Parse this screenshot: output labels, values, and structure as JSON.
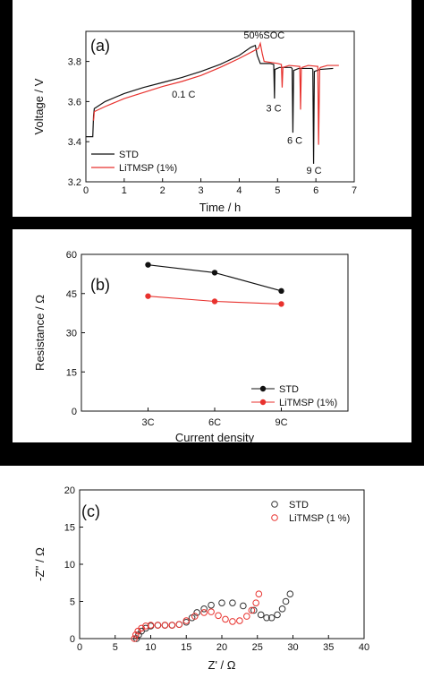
{
  "chart_data": [
    {
      "type": "line",
      "panel_label": "(a)",
      "xlabel": "Time / h",
      "ylabel": "Voltage / V",
      "xlim": [
        0,
        7
      ],
      "ylim": [
        3.2,
        3.95
      ],
      "xticks": [
        0,
        1,
        2,
        3,
        4,
        5,
        6,
        7
      ],
      "yticks": [
        3.2,
        3.4,
        3.6,
        3.8
      ],
      "legend_position": "bottom-left",
      "annotations": [
        {
          "text": "50%SOC",
          "x": 4.65,
          "y": 3.915
        },
        {
          "text": "0.1 C",
          "x": 2.55,
          "y": 3.62
        },
        {
          "text": "3 C",
          "x": 4.9,
          "y": 3.55
        },
        {
          "text": "6 C",
          "x": 5.45,
          "y": 3.39
        },
        {
          "text": "9 C",
          "x": 5.95,
          "y": 3.24
        }
      ],
      "series": [
        {
          "name": "STD",
          "color": "#111111",
          "x": [
            0,
            0.18,
            0.2,
            0.22,
            0.5,
            1.0,
            1.5,
            2.0,
            2.5,
            3.0,
            3.5,
            4.0,
            4.3,
            4.42,
            4.47,
            4.55,
            4.8,
            4.9,
            4.92,
            4.93,
            5.05,
            5.35,
            5.38,
            5.4,
            5.42,
            5.55,
            5.9,
            5.92,
            5.94,
            5.96,
            6.1,
            6.45
          ],
          "y": [
            3.425,
            3.425,
            3.53,
            3.565,
            3.6,
            3.64,
            3.67,
            3.695,
            3.72,
            3.75,
            3.785,
            3.83,
            3.87,
            3.88,
            3.83,
            3.79,
            3.79,
            3.785,
            3.615,
            3.76,
            3.77,
            3.77,
            3.765,
            3.445,
            3.755,
            3.765,
            3.765,
            3.76,
            3.29,
            3.75,
            3.76,
            3.765
          ]
        },
        {
          "name": "LiTMSP (1%)",
          "color": "#e8322e",
          "x": [
            0.2,
            0.22,
            0.5,
            1.0,
            1.5,
            2.0,
            2.5,
            3.0,
            3.5,
            4.0,
            4.5,
            4.55,
            4.6,
            4.65,
            5.0,
            5.1,
            5.12,
            5.14,
            5.3,
            5.58,
            5.6,
            5.62,
            5.64,
            5.8,
            6.05,
            6.07,
            6.1,
            6.12,
            6.3,
            6.6
          ],
          "y": [
            3.505,
            3.55,
            3.575,
            3.615,
            3.645,
            3.675,
            3.7,
            3.73,
            3.77,
            3.815,
            3.865,
            3.89,
            3.84,
            3.8,
            3.79,
            3.785,
            3.67,
            3.77,
            3.78,
            3.775,
            3.56,
            3.765,
            3.77,
            3.78,
            3.775,
            3.385,
            3.765,
            3.77,
            3.78,
            3.78
          ]
        }
      ]
    },
    {
      "type": "line",
      "panel_label": "(b)",
      "xlabel": "Current density",
      "ylabel": "Resistance / Ω",
      "categories": [
        "3C",
        "6C",
        "9C"
      ],
      "ylim": [
        0,
        60
      ],
      "yticks": [
        0,
        15,
        30,
        45,
        60
      ],
      "legend_position": "bottom-right",
      "series": [
        {
          "name": "STD",
          "color": "#111111",
          "values": [
            56,
            53,
            46
          ]
        },
        {
          "name": "LiTMSP (1%)",
          "color": "#e8322e",
          "values": [
            44,
            42,
            41
          ]
        }
      ]
    },
    {
      "type": "scatter",
      "panel_label": "(c)",
      "xlabel": "Z' / Ω",
      "ylabel": "-Z'' / Ω",
      "xlim": [
        0,
        40
      ],
      "ylim": [
        0,
        20
      ],
      "xticks": [
        0,
        5,
        10,
        15,
        20,
        25,
        30,
        35,
        40
      ],
      "yticks": [
        0,
        5,
        10,
        15,
        20
      ],
      "legend_position": "top-right",
      "series": [
        {
          "name": "STD",
          "color": "#333333",
          "marker": "open-circle",
          "x": [
            8.0,
            8.3,
            8.7,
            9.3,
            10.0,
            11.0,
            12.0,
            13.0,
            14.0,
            15.0,
            15.8,
            16.5,
            17.5,
            18.5,
            20.0,
            21.5,
            23.0,
            24.5,
            25.5,
            26.3,
            27.0,
            27.8,
            28.5,
            29.0,
            29.6
          ],
          "y": [
            0.0,
            0.5,
            1.0,
            1.4,
            1.7,
            1.8,
            1.8,
            1.8,
            1.9,
            2.2,
            2.8,
            3.5,
            4.0,
            4.5,
            4.8,
            4.8,
            4.4,
            3.8,
            3.2,
            2.8,
            2.8,
            3.2,
            4.0,
            5.0,
            6.0
          ]
        },
        {
          "name": "LiTMSP (1 %)",
          "color": "#e8322e",
          "marker": "open-circle",
          "x": [
            7.7,
            7.9,
            8.2,
            8.7,
            9.3,
            10.0,
            11.0,
            12.0,
            13.0,
            14.0,
            15.0,
            16.2,
            17.5,
            18.5,
            19.5,
            20.5,
            21.5,
            22.5,
            23.5,
            24.2,
            24.8,
            25.2
          ],
          "y": [
            0.0,
            0.5,
            1.0,
            1.4,
            1.7,
            1.8,
            1.8,
            1.8,
            1.8,
            1.9,
            2.4,
            3.0,
            3.5,
            3.6,
            3.1,
            2.6,
            2.3,
            2.4,
            3.0,
            3.8,
            4.8,
            6.0
          ]
        }
      ]
    }
  ]
}
